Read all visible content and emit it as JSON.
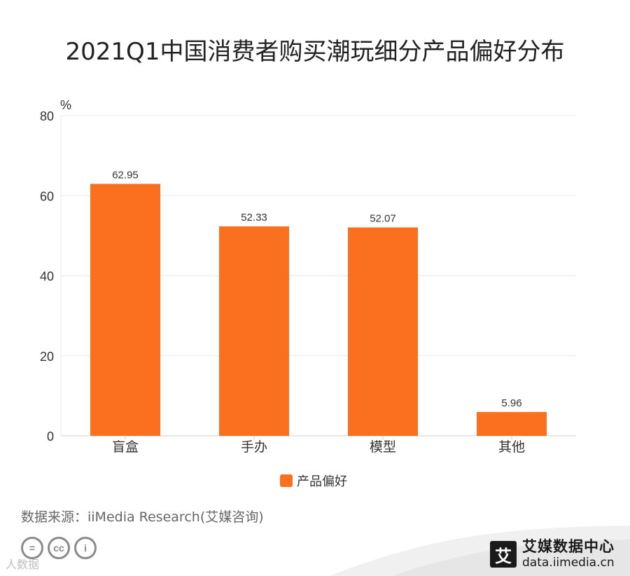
{
  "title": "2021Q1中国消费者购买潮玩细分产品偏好分布",
  "source": "数据来源：iiMedia Research(艾媒咨询)",
  "watermark": "人数据",
  "brand": {
    "name": "艾媒数据中心",
    "url": "data.iimedia.cn",
    "logo_char": "艾"
  },
  "colors": {
    "bar": "#FA701F",
    "grid": "#e8e8e8",
    "axis": "#cccccc"
  },
  "chart_data": {
    "type": "bar",
    "title": "2021Q1中国消费者购买潮玩细分产品偏好分布",
    "ylabel": "%",
    "xlabel": "",
    "ylim": [
      0,
      80
    ],
    "yticks": [
      0,
      20,
      40,
      60,
      80
    ],
    "categories": [
      "盲盒",
      "手办",
      "模型",
      "其他"
    ],
    "series": [
      {
        "name": "产品偏好",
        "values": [
          62.95,
          52.33,
          52.07,
          5.96
        ]
      }
    ],
    "value_labels": [
      "62.95",
      "52.33",
      "52.07",
      "5.96"
    ],
    "legend": "bottom-center",
    "grid": true
  }
}
